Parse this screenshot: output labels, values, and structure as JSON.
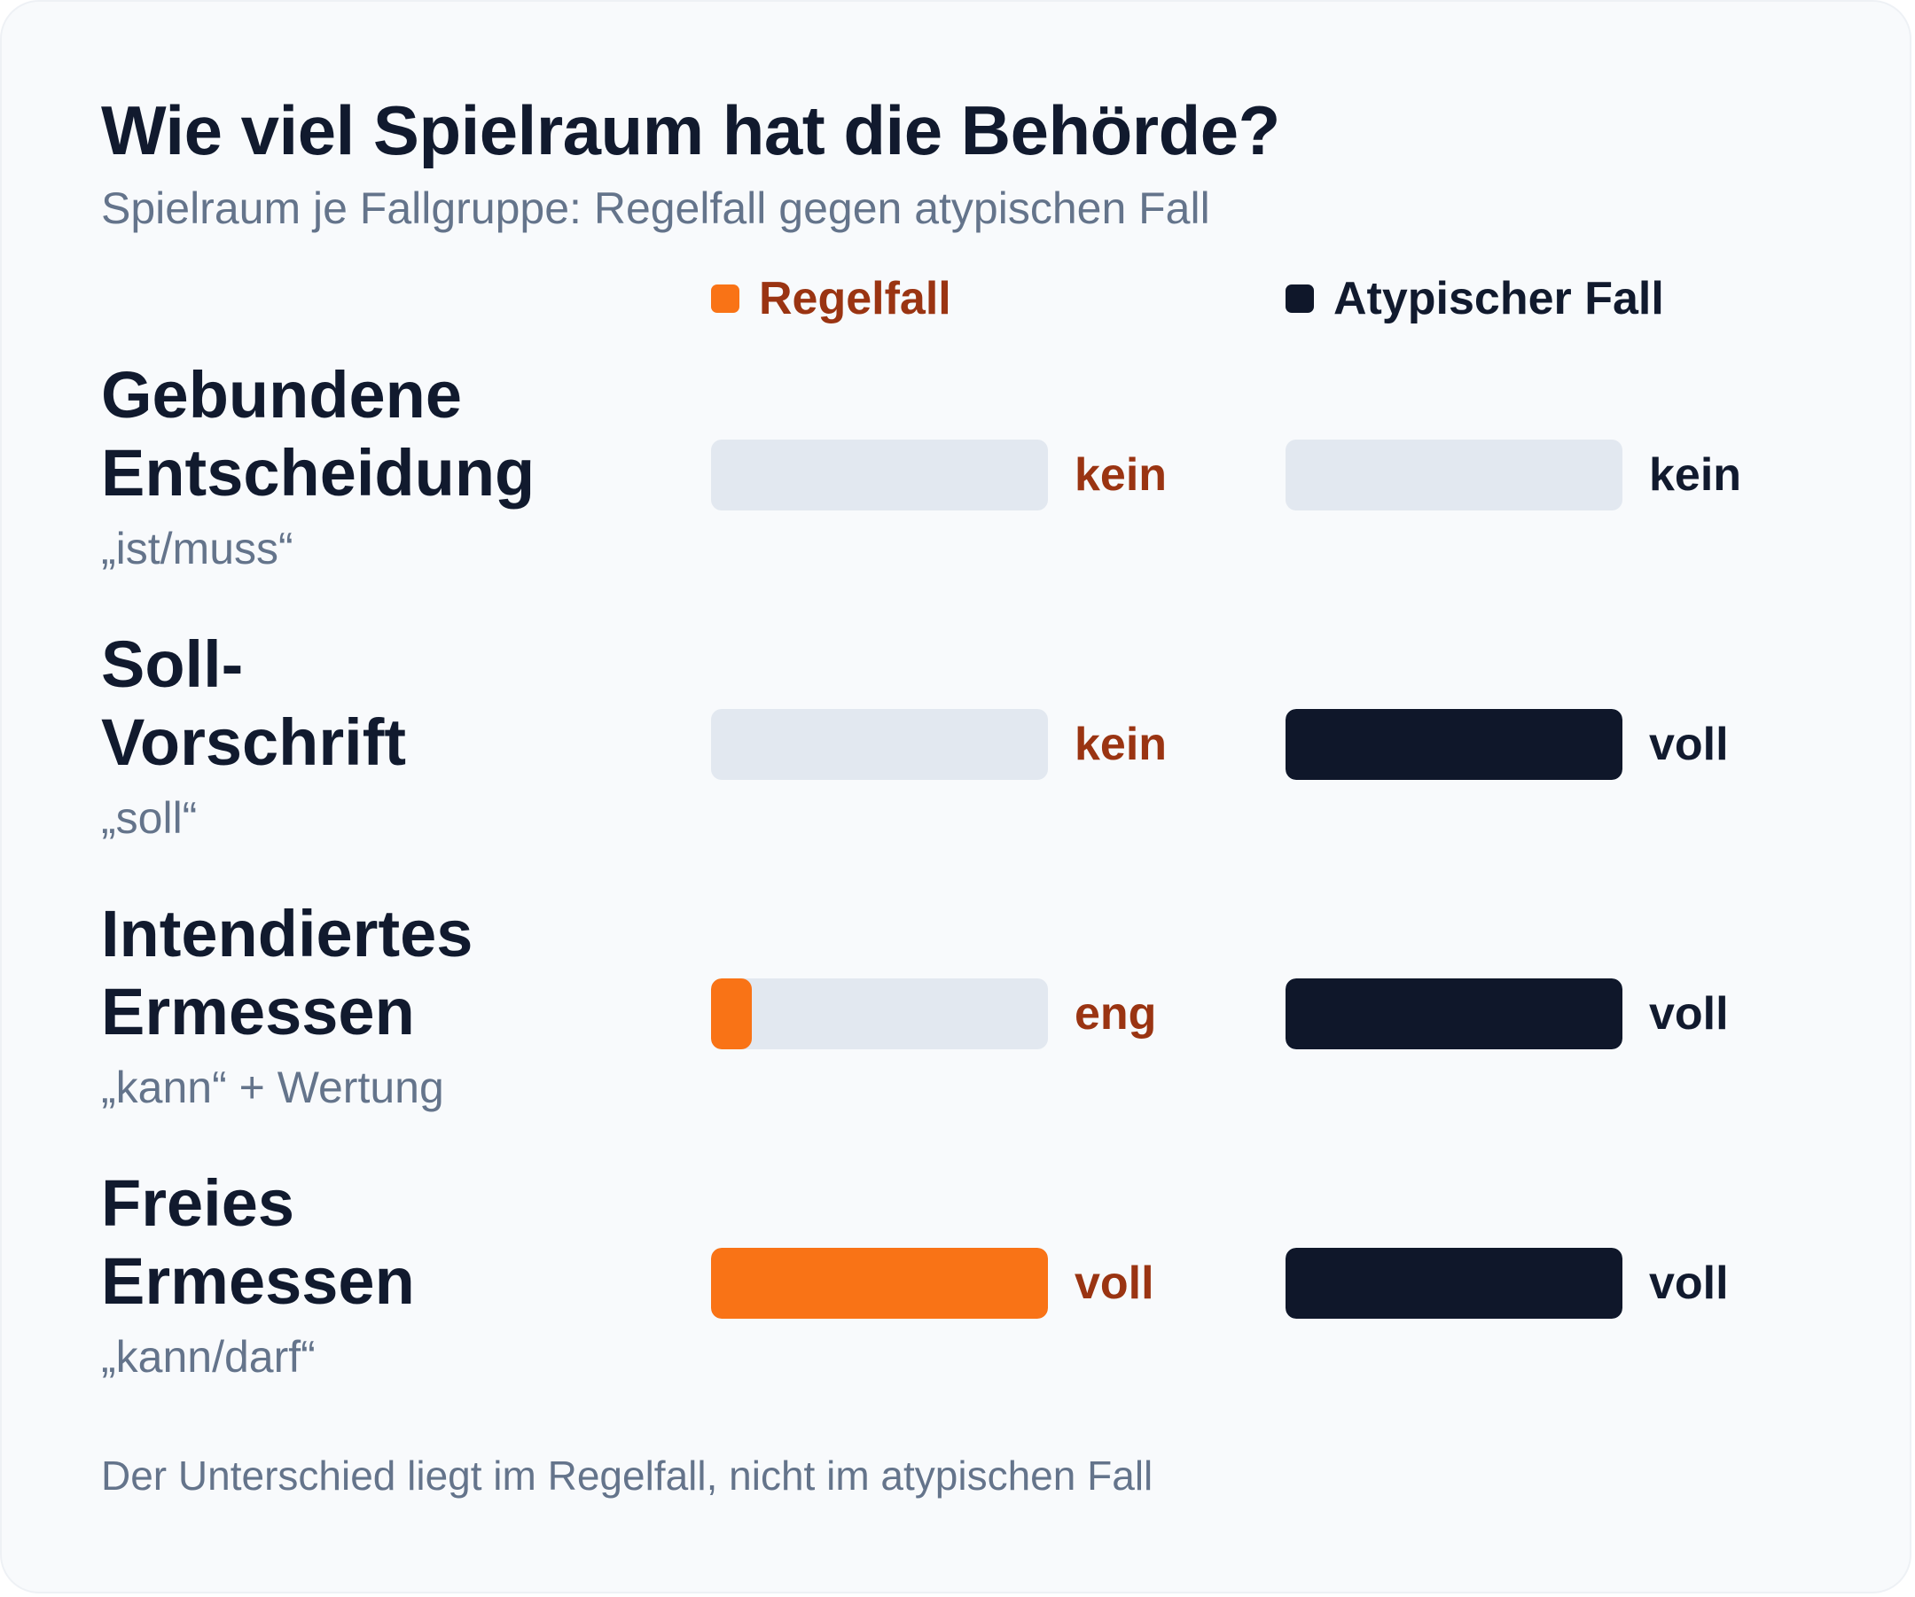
{
  "chart_data": {
    "type": "bar",
    "title": "Wie viel Spielraum hat die Behörde?",
    "subtitle": "Spielraum je Fallgruppe: Regelfall gegen atypischen Fall",
    "footnote": "Der Unterschied liegt im Regelfall, nicht im atypischen Fall",
    "xlim": [
      0,
      1
    ],
    "series": [
      {
        "name": "Regelfall",
        "color": "#f97316",
        "label_color": "#9a3412",
        "values": [
          0,
          0,
          0.12,
          1
        ],
        "labels": [
          "kein",
          "kein",
          "eng",
          "voll"
        ]
      },
      {
        "name": "Atypischer Fall",
        "color": "#0f172a",
        "label_color": "#111a2e",
        "values": [
          0,
          1,
          1,
          1
        ],
        "labels": [
          "kein",
          "voll",
          "voll",
          "voll"
        ]
      }
    ],
    "categories": [
      {
        "title_lines": [
          "Gebundene",
          "Entscheidung"
        ],
        "sub": "„ist/muss“"
      },
      {
        "title_lines": [
          "Soll-",
          "Vorschrift"
        ],
        "sub": "„soll“"
      },
      {
        "title_lines": [
          "Intendiertes",
          "Ermessen"
        ],
        "sub": "„kann“ + Wertung"
      },
      {
        "title_lines": [
          "Freies",
          "Ermessen"
        ],
        "sub": "„kann/darf“"
      }
    ]
  }
}
